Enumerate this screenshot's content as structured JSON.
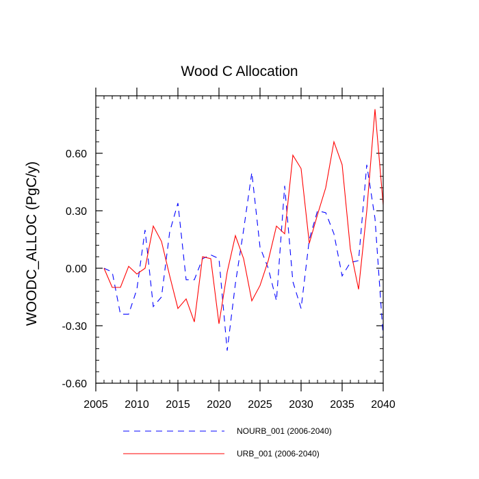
{
  "chart_data": {
    "type": "line",
    "title": "Wood C Allocation",
    "xlabel": "",
    "ylabel": "WOODC_ALLOC  (PgC/y)",
    "xlim": [
      2005,
      2040
    ],
    "ylim": [
      -0.6,
      0.9
    ],
    "xticks": [
      2005,
      2010,
      2015,
      2020,
      2025,
      2030,
      2035,
      2040
    ],
    "xtick_labels": [
      "2005",
      "2010",
      "2015",
      "2020",
      "2025",
      "2030",
      "2035",
      "2040"
    ],
    "yticks": [
      -0.6,
      -0.3,
      0.0,
      0.3,
      0.6
    ],
    "ytick_labels": [
      "-0.60",
      "-0.30",
      "0.00",
      "0.30",
      "0.60"
    ],
    "x": [
      2006,
      2007,
      2008,
      2009,
      2010,
      2011,
      2012,
      2013,
      2014,
      2015,
      2016,
      2017,
      2018,
      2019,
      2020,
      2021,
      2022,
      2023,
      2024,
      2025,
      2026,
      2027,
      2028,
      2029,
      2030,
      2031,
      2032,
      2033,
      2034,
      2035,
      2036,
      2037,
      2038,
      2039,
      2040
    ],
    "series": [
      {
        "name": "NOURB_001 (2006-2040)",
        "color": "#0000ff",
        "dash": "dashed",
        "values": [
          0.0,
          -0.02,
          -0.24,
          -0.24,
          -0.11,
          0.2,
          -0.2,
          -0.15,
          0.19,
          0.34,
          -0.06,
          -0.06,
          0.05,
          0.07,
          0.05,
          -0.43,
          -0.08,
          0.2,
          0.5,
          0.11,
          0.0,
          -0.17,
          0.43,
          -0.07,
          -0.21,
          0.15,
          0.3,
          0.29,
          0.18,
          -0.04,
          0.03,
          0.04,
          0.54,
          0.26,
          -0.36
        ]
      },
      {
        "name": "URB_001 (2006-2040)",
        "color": "#ff0000",
        "dash": "solid",
        "values": [
          0.0,
          -0.1,
          -0.1,
          0.01,
          -0.03,
          0.0,
          0.22,
          0.14,
          -0.04,
          -0.21,
          -0.16,
          -0.28,
          0.06,
          0.05,
          -0.29,
          -0.02,
          0.17,
          0.05,
          -0.17,
          -0.09,
          0.04,
          0.22,
          0.18,
          0.59,
          0.52,
          0.13,
          0.28,
          0.42,
          0.66,
          0.54,
          0.1,
          -0.11,
          0.3,
          0.83,
          0.33
        ]
      }
    ],
    "legend": "bottom"
  }
}
